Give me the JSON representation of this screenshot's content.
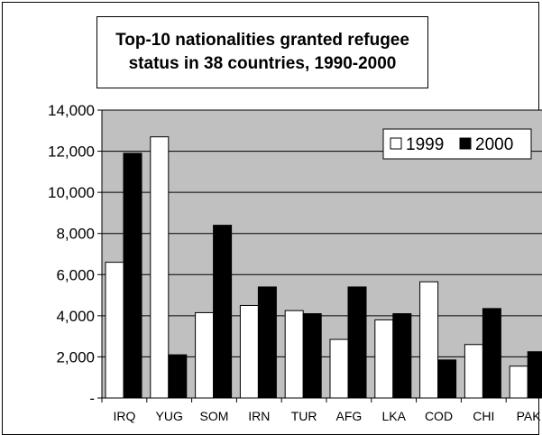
{
  "chart_data": {
    "type": "bar",
    "title": "Top-10 nationalities granted refugee status in 38 countries, 1990-2000",
    "categories": [
      "IRQ",
      "YUG",
      "SOM",
      "IRN",
      "TUR",
      "AFG",
      "LKA",
      "COD",
      "CHI",
      "PAK"
    ],
    "series": [
      {
        "name": "1999",
        "values": [
          6600,
          12700,
          4150,
          4500,
          4250,
          2850,
          3800,
          5650,
          2600,
          1550
        ],
        "color": "#ffffff"
      },
      {
        "name": "2000",
        "values": [
          11900,
          2100,
          8400,
          5400,
          4100,
          5400,
          4100,
          1850,
          4350,
          2250
        ],
        "color": "#000000"
      }
    ],
    "yticks": [
      "-",
      "2,000",
      "4,000",
      "6,000",
      "8,000",
      "10,000",
      "12,000",
      "14,000"
    ],
    "ylim": [
      0,
      14000
    ],
    "xlabel": "",
    "ylabel": "",
    "legend": "top-right",
    "grid": true,
    "plot_background": "#c0c0c0"
  }
}
